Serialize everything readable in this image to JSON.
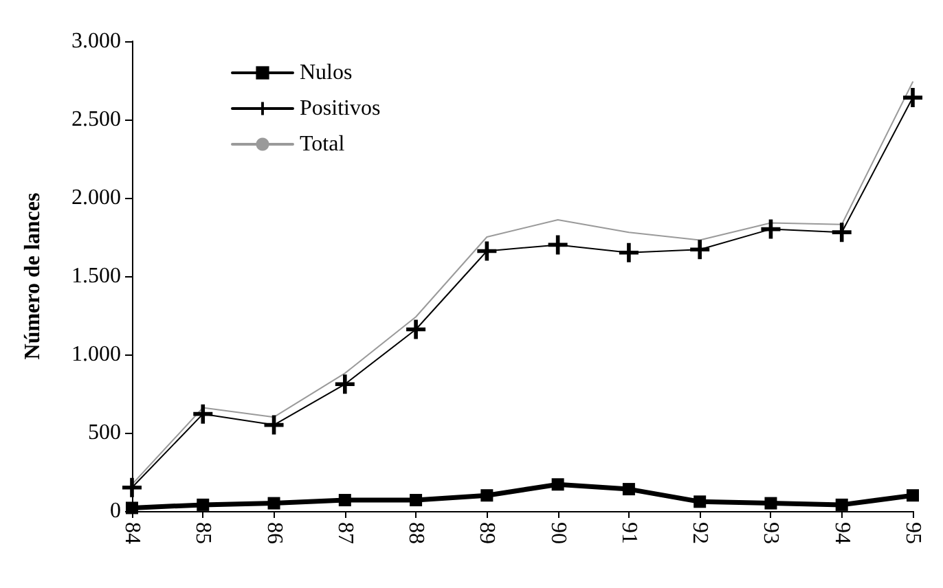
{
  "chart_data": {
    "type": "line",
    "ylabel": "Número de lances",
    "categories": [
      "84",
      "85",
      "86",
      "87",
      "88",
      "89",
      "90",
      "91",
      "92",
      "93",
      "94",
      "95"
    ],
    "series": [
      {
        "name": "Nulos",
        "color": "#000000",
        "marker": "square",
        "values": [
          20,
          40,
          50,
          70,
          70,
          100,
          170,
          140,
          60,
          50,
          40,
          100
        ]
      },
      {
        "name": "Positivos",
        "color": "#000000",
        "marker": "cross",
        "values": [
          150,
          620,
          550,
          810,
          1160,
          1660,
          1700,
          1650,
          1670,
          1800,
          1780,
          2640
        ]
      },
      {
        "name": "Total",
        "color": "#9a9a9a",
        "marker": "none",
        "values": [
          170,
          660,
          600,
          880,
          1240,
          1750,
          1860,
          1780,
          1730,
          1840,
          1830,
          2740
        ]
      }
    ],
    "ylim": [
      0,
      3000
    ],
    "yticks": [
      0,
      500,
      {
        "value": 1000,
        "label": "1.000"
      },
      {
        "value": 1500,
        "label": "1.500"
      },
      {
        "value": 2000,
        "label": "2.000"
      },
      {
        "value": 2500,
        "label": "2.500"
      },
      {
        "value": 3000,
        "label": "3.000"
      }
    ],
    "grid": false,
    "legend": "top left"
  }
}
